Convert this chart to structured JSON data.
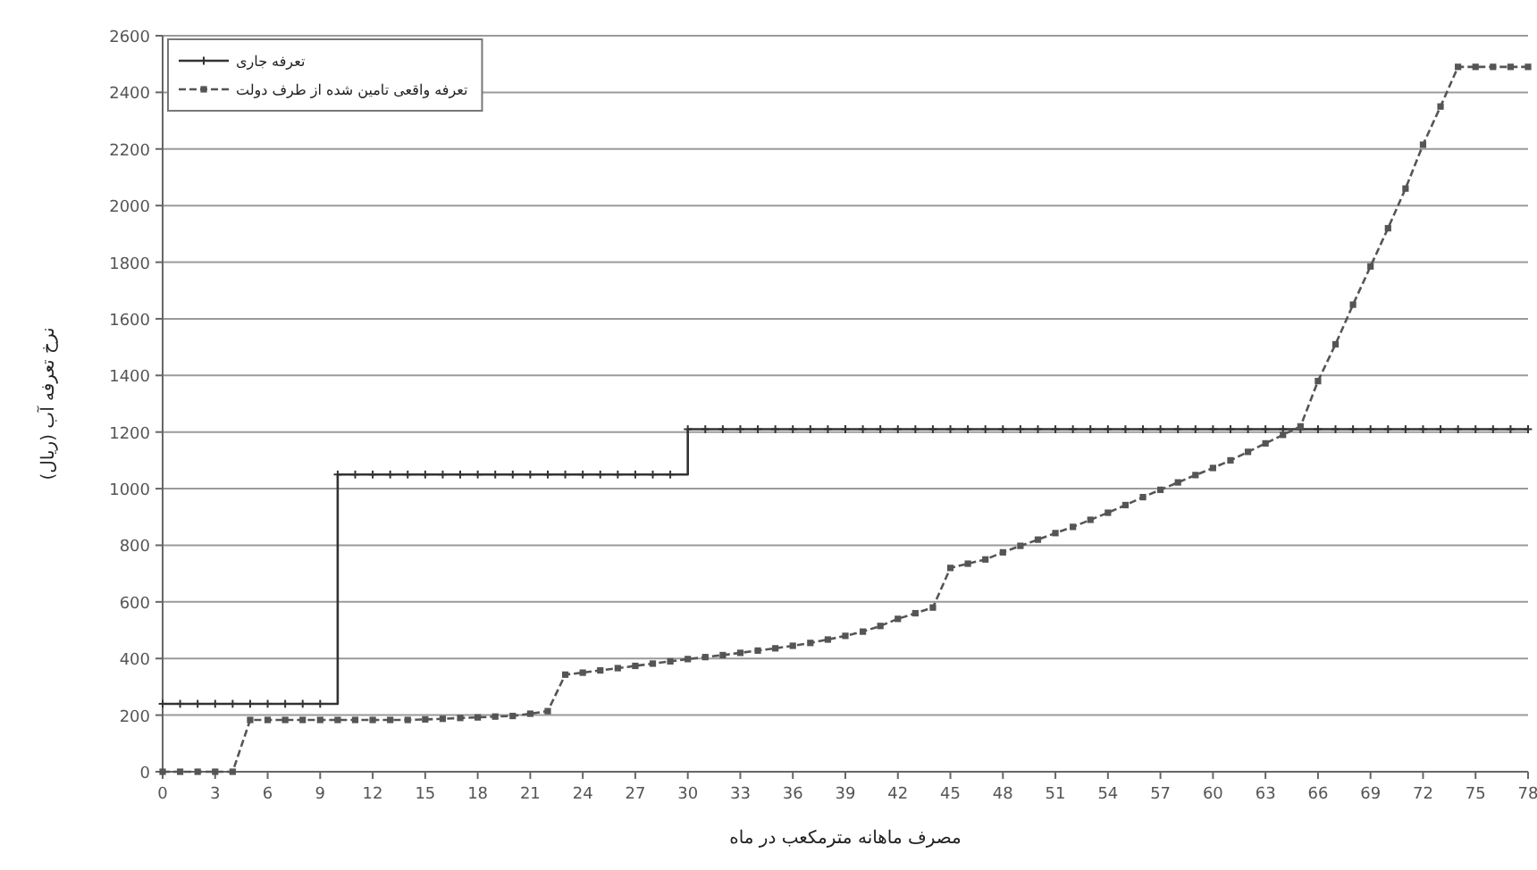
{
  "chart_data": {
    "type": "line",
    "xlabel": "مصرف ماهانه مترمکعب در ماه",
    "ylabel": "نرخ تعرفه آب (ریال)",
    "x": [
      0,
      1,
      2,
      3,
      4,
      5,
      6,
      7,
      8,
      9,
      10,
      11,
      12,
      13,
      14,
      15,
      16,
      17,
      18,
      19,
      20,
      21,
      22,
      23,
      24,
      25,
      26,
      27,
      28,
      29,
      30,
      31,
      32,
      33,
      34,
      35,
      36,
      37,
      38,
      39,
      40,
      41,
      42,
      43,
      44,
      45,
      46,
      47,
      48,
      49,
      50,
      51,
      52,
      53,
      54,
      55,
      56,
      57,
      58,
      59,
      60,
      61,
      62,
      63,
      64,
      65,
      66,
      67,
      68,
      69,
      70,
      71,
      72,
      73,
      74,
      75,
      76,
      77,
      78
    ],
    "series": [
      {
        "name": "تعرفه جاری",
        "type": "step",
        "color": "#333333",
        "marker": "cross",
        "line_style": "solid",
        "values": [
          240,
          240,
          240,
          240,
          240,
          240,
          240,
          240,
          240,
          240,
          1050,
          1050,
          1050,
          1050,
          1050,
          1050,
          1050,
          1050,
          1050,
          1050,
          1050,
          1050,
          1050,
          1050,
          1050,
          1050,
          1050,
          1050,
          1050,
          1050,
          1210,
          1210,
          1210,
          1210,
          1210,
          1210,
          1210,
          1210,
          1210,
          1210,
          1210,
          1210,
          1210,
          1210,
          1210,
          1210,
          1210,
          1210,
          1210,
          1210,
          1210,
          1210,
          1210,
          1210,
          1210,
          1210,
          1210,
          1210,
          1210,
          1210,
          1210,
          1210,
          1210,
          1210,
          1210,
          1210,
          1210,
          1210,
          1210,
          1210,
          1210,
          1210,
          1210,
          1210,
          1210,
          1210,
          1210,
          1210,
          1210
        ]
      },
      {
        "name": "تعرفه واقعی تامین شده از طرف دولت",
        "color": "#555555",
        "marker": "square",
        "line_style": "dashed",
        "values": [
          0,
          0,
          0,
          0,
          0,
          183,
          183,
          183,
          183,
          183,
          183,
          183,
          183,
          183,
          183,
          185,
          187,
          190,
          192,
          195,
          197,
          205,
          214,
          343,
          350,
          358,
          366,
          374,
          382,
          390,
          398,
          405,
          412,
          420,
          428,
          436,
          445,
          455,
          467,
          480,
          495,
          515,
          540,
          560,
          580,
          720,
          735,
          750,
          775,
          798,
          820,
          843,
          865,
          890,
          915,
          942,
          970,
          996,
          1022,
          1048,
          1073,
          1100,
          1130,
          1160,
          1190,
          1220,
          1380,
          1510,
          1650,
          1785,
          1920,
          2060,
          2215,
          2350,
          2490,
          2490,
          2490,
          2490,
          2490
        ]
      }
    ],
    "xlim": [
      0,
      78
    ],
    "xticks": [
      0,
      3,
      6,
      9,
      12,
      15,
      18,
      21,
      24,
      27,
      30,
      33,
      36,
      39,
      42,
      45,
      48,
      51,
      54,
      57,
      60,
      63,
      66,
      69,
      72,
      75,
      78
    ],
    "ylim": [
      0,
      2600
    ],
    "yticks": [
      0,
      200,
      400,
      600,
      800,
      1000,
      1200,
      1400,
      1600,
      1800,
      2000,
      2200,
      2400,
      2600
    ],
    "grid": "y",
    "legend": "top left"
  }
}
